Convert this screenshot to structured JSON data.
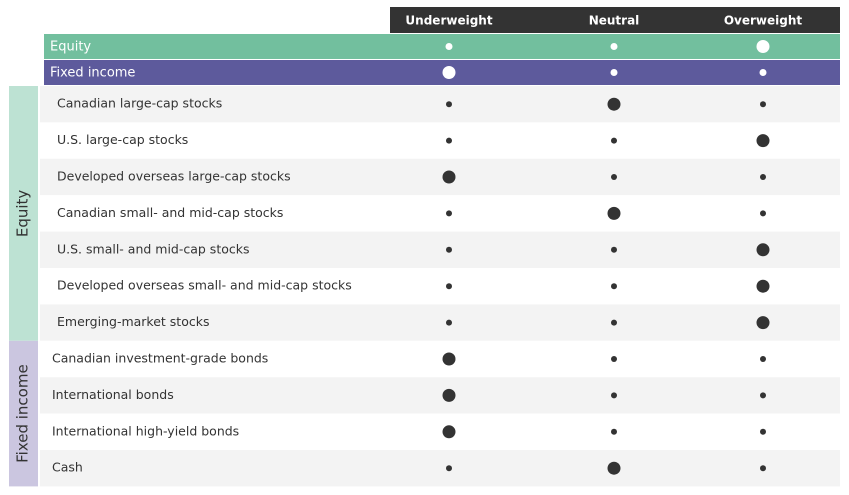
{
  "header": {
    "columns": [
      "Underweight",
      "Neutral",
      "Overweight"
    ]
  },
  "summary": [
    {
      "label": "Equity",
      "selected": 2
    },
    {
      "label": "Fixed income",
      "selected": 0
    }
  ],
  "groups": [
    {
      "label": "Equity",
      "rows": [
        {
          "label": "Canadian large-cap stocks",
          "selected": 1
        },
        {
          "label": "U.S. large-cap stocks",
          "selected": 2
        },
        {
          "label": "Developed overseas large-cap stocks",
          "selected": 0
        },
        {
          "label": "Canadian small- and mid-cap stocks",
          "selected": 1
        },
        {
          "label": "U.S. small- and mid-cap stocks",
          "selected": 2
        },
        {
          "label": "Developed overseas small- and mid-cap stocks",
          "selected": 2
        },
        {
          "label": "Emerging-market stocks",
          "selected": 2
        }
      ]
    },
    {
      "label": "Fixed income",
      "rows": [
        {
          "label": "Canadian investment-grade bonds",
          "selected": 0
        },
        {
          "label": "International bonds",
          "selected": 0
        },
        {
          "label": "International high-yield bonds",
          "selected": 0
        },
        {
          "label": "Cash",
          "selected": 1
        }
      ]
    }
  ]
}
